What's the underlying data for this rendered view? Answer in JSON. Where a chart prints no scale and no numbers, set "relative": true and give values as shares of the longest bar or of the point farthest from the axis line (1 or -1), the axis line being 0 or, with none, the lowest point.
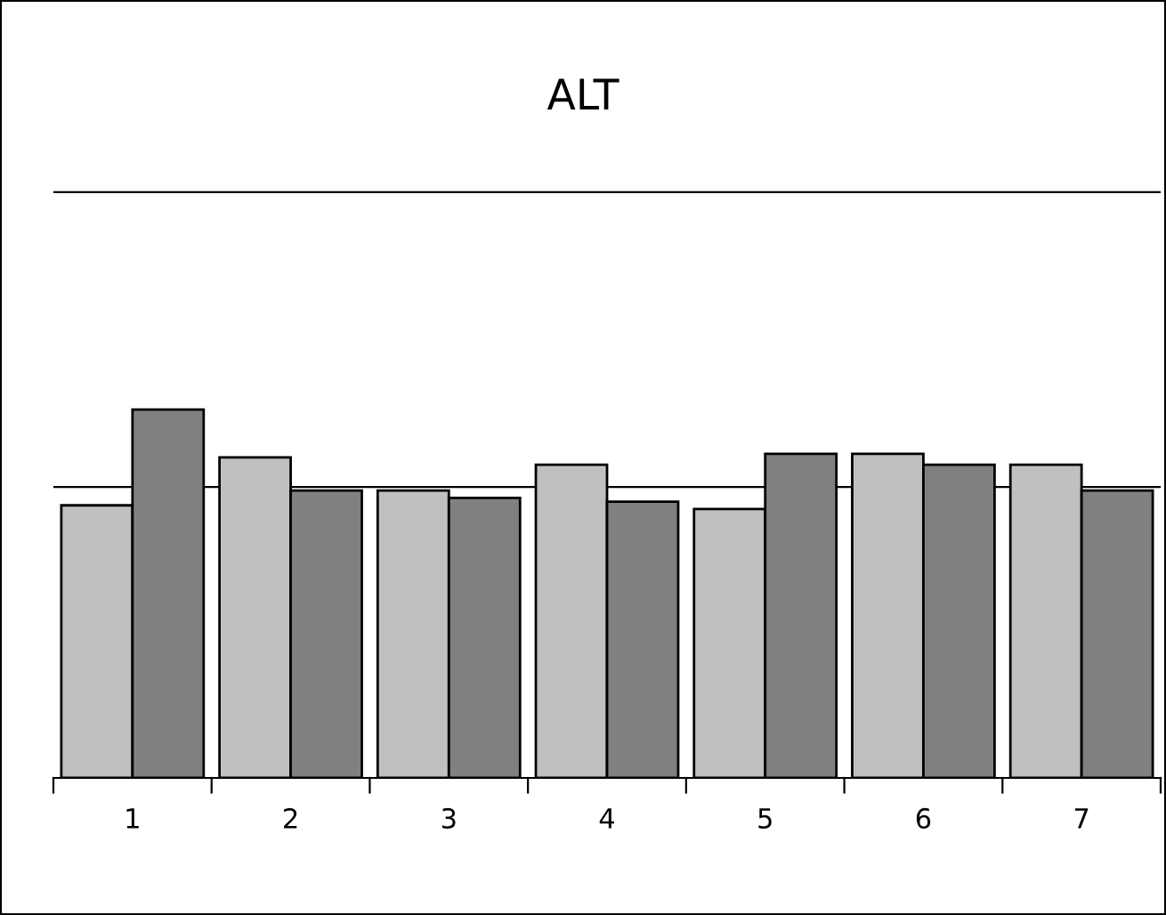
{
  "chart_data": {
    "type": "bar",
    "title": "ALT",
    "relative": true,
    "categories": [
      "1",
      "2",
      "3",
      "4",
      "5",
      "6",
      "7"
    ],
    "series": [
      {
        "color": "#c0c0c0",
        "values": [
          0.74,
          0.87,
          0.78,
          0.85,
          0.73,
          0.88,
          0.85
        ]
      },
      {
        "color": "#808080",
        "values": [
          1,
          0.78,
          0.76,
          0.75,
          0.88,
          0.85,
          0.78
        ]
      }
    ],
    "ref_lines": [
      {
        "axis": "y",
        "value": 0.79,
        "color": "#000000"
      },
      {
        "axis": "y",
        "value": 1.59,
        "color": "#000000"
      }
    ]
  }
}
